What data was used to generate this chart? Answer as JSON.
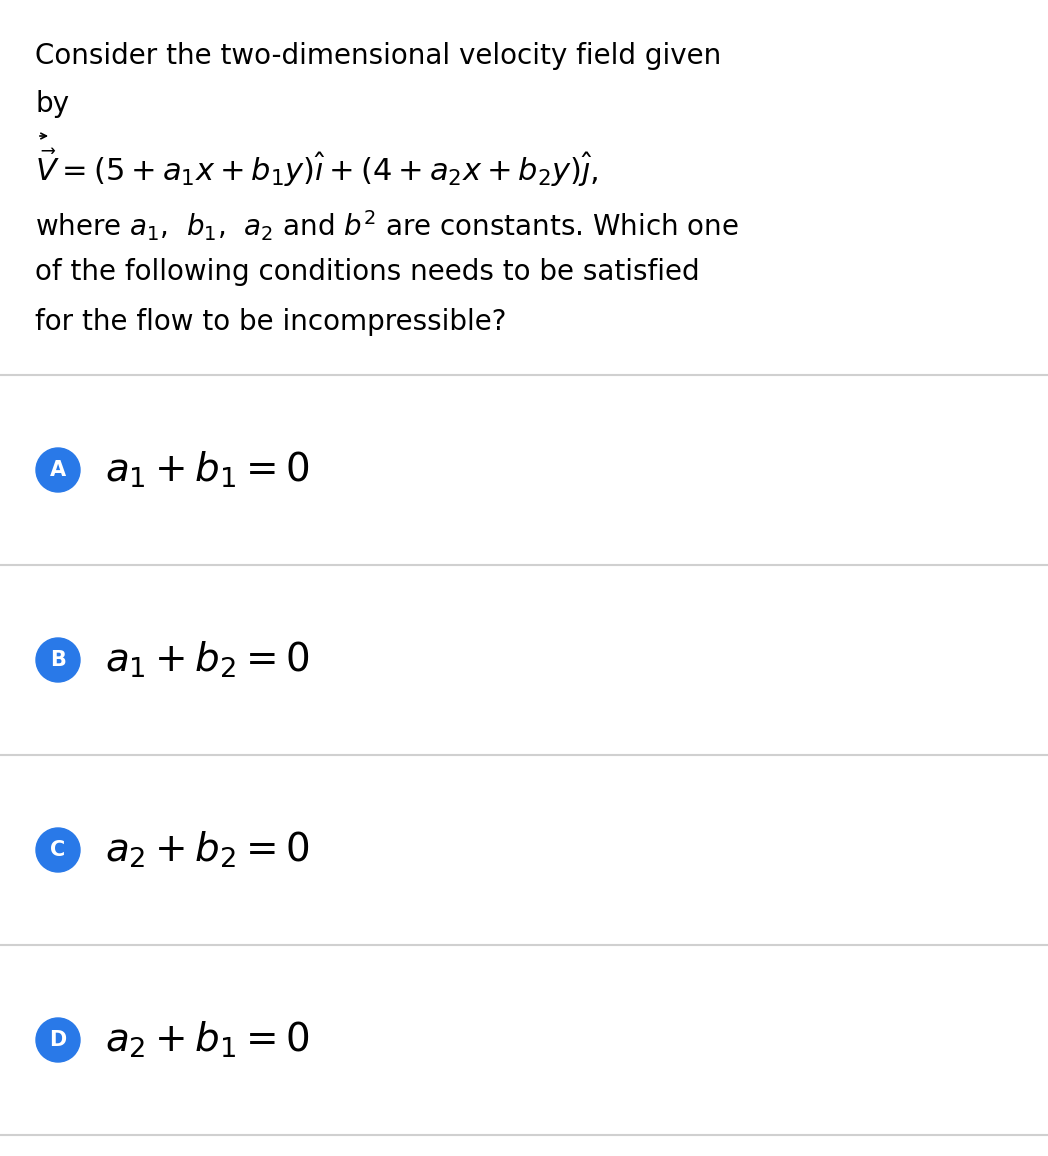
{
  "bg_color": "#ffffff",
  "separator_color": "#d0d0d0",
  "circle_color": "#2979e8",
  "circle_text_color": "#ffffff",
  "text_color": "#000000",
  "options": [
    {
      "label": "A",
      "math": "$a_1 + b_1 = 0$"
    },
    {
      "label": "B",
      "math": "$a_1 + b_2 = 0$"
    },
    {
      "label": "C",
      "math": "$a_2 + b_2 = 0$"
    },
    {
      "label": "D",
      "math": "$a_2 + b_1 = 0$"
    }
  ],
  "q_fontsize": 20,
  "eq_fontsize": 22,
  "opt_fontsize": 28,
  "circle_label_fontsize": 15,
  "figsize": [
    10.48,
    11.56
  ],
  "dpi": 100
}
